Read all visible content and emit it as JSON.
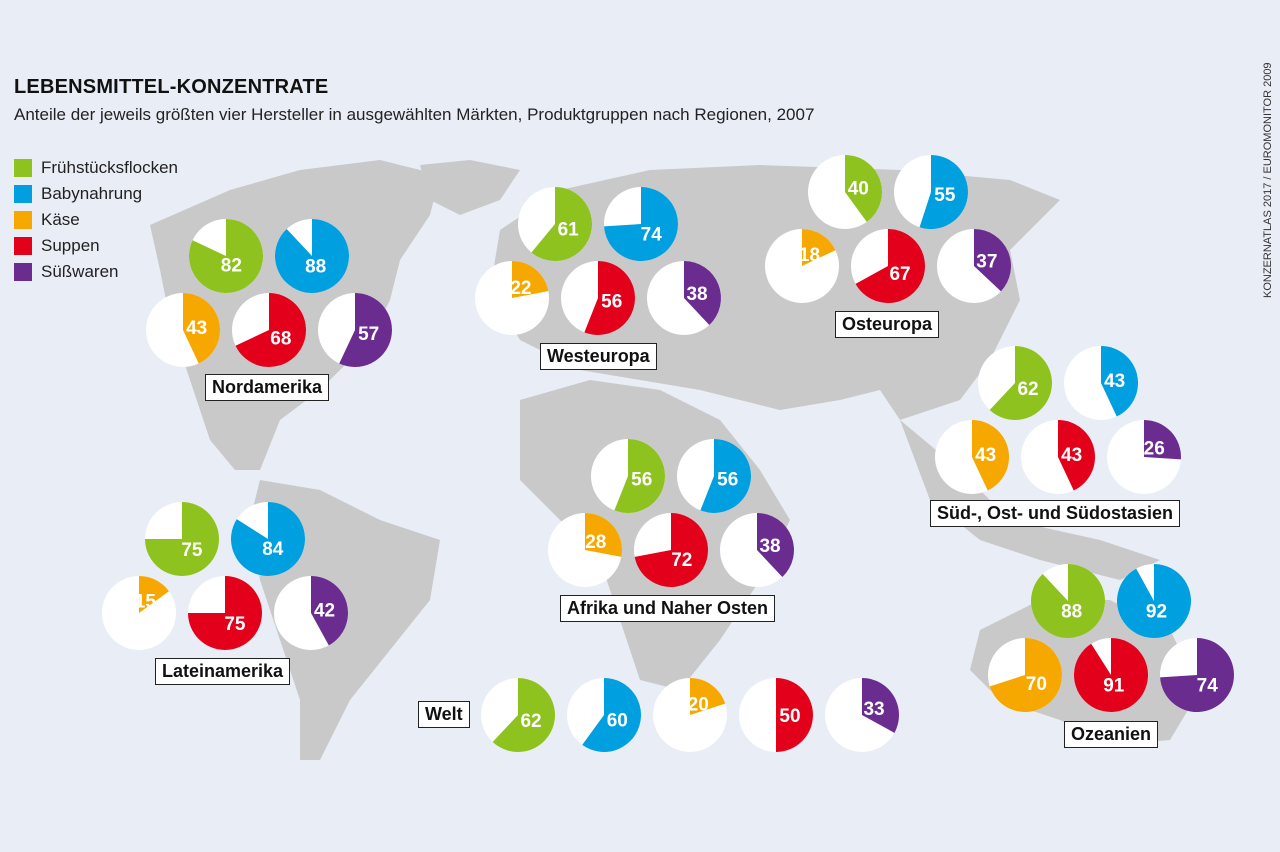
{
  "chart_data": {
    "type": "pie",
    "title": "LEBENSMITTEL-KONZENTRATE",
    "subtitle": "Anteile der jeweils größten vier Hersteller in ausgewählten Märkten, Produktgruppen nach Regionen, 2007",
    "source": "KONZERNATLAS 2017 / EUROMONITOR 2009",
    "unit": "percent",
    "legend_position": "top-left",
    "categories": [
      {
        "name": "Frühstücksflocken",
        "color": "#8dc21f"
      },
      {
        "name": "Babynahrung",
        "color": "#009fe0"
      },
      {
        "name": "Käse",
        "color": "#f6a800"
      },
      {
        "name": "Suppen",
        "color": "#e2001a"
      },
      {
        "name": "Süßwaren",
        "color": "#6a2c8f"
      }
    ],
    "regions": [
      {
        "name": "Nordamerika",
        "values": [
          82,
          88,
          43,
          68,
          57
        ]
      },
      {
        "name": "Westeuropa",
        "values": [
          61,
          74,
          22,
          56,
          38
        ]
      },
      {
        "name": "Osteuropa",
        "values": [
          40,
          55,
          18,
          67,
          37
        ]
      },
      {
        "name": "Süd-, Ost- und Südostasien",
        "values": [
          62,
          43,
          43,
          43,
          26
        ]
      },
      {
        "name": "Afrika und Naher Osten",
        "values": [
          56,
          56,
          28,
          72,
          38
        ]
      },
      {
        "name": "Lateinamerika",
        "values": [
          75,
          84,
          15,
          75,
          42
        ]
      },
      {
        "name": "Ozeanien",
        "values": [
          88,
          92,
          70,
          91,
          74
        ]
      },
      {
        "name": "Welt",
        "values": [
          62,
          60,
          20,
          50,
          33
        ]
      }
    ]
  }
}
